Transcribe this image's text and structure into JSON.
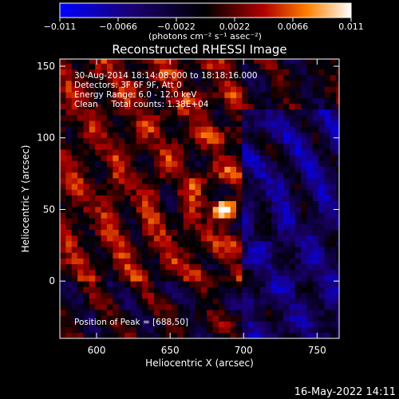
{
  "chart_data": {
    "type": "heatmap",
    "title": "Reconstructed RHESSI Image",
    "xlabel": "Heliocentric X (arcsec)",
    "ylabel": "Heliocentric Y (arcsec)",
    "xlim": [
      575,
      765
    ],
    "ylim": [
      -40,
      155
    ],
    "x_ticks": [
      600,
      650,
      700,
      750
    ],
    "y_ticks": [
      0,
      50,
      100,
      150
    ],
    "colorbar": {
      "min": -0.011,
      "max": 0.011,
      "ticks": [
        -0.011,
        -0.0066,
        -0.0022,
        0.0022,
        0.0066,
        0.011
      ],
      "tick_labels": [
        "−0.011",
        "−0.0066",
        "−0.0022",
        "0.0022",
        "0.0066",
        "0.011"
      ],
      "unit_label": "(photons cm⁻² s⁻¹ asec⁻²)"
    },
    "annotations": [
      "30-Aug-2014 18:14:08.000 to 18:18:16.000",
      "Detectors: 3F 6F 9F, Att 0",
      "Energy Range: 6.0 - 12.0 keV",
      "Clean     Total counts: 1.38E+04"
    ],
    "peak_label": "Position of Peak = [688,50]",
    "peak": {
      "x": 688,
      "y": 50,
      "value": 0.011
    },
    "grid_step_arcsec": 4
  },
  "footer": {
    "timestamp": "16-May-2022 14:11"
  },
  "colors": {
    "background": "#000000",
    "axes": "#ffffff"
  }
}
